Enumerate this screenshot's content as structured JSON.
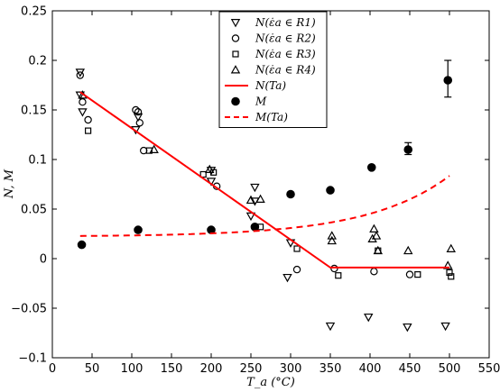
{
  "chart_data": {
    "type": "scatter",
    "xlabel": "T_a (°C)",
    "ylabel": "N, M",
    "xlim": [
      0,
      550
    ],
    "ylim": [
      -0.1,
      0.25
    ],
    "xticks": [
      0,
      50,
      100,
      150,
      200,
      250,
      300,
      350,
      400,
      450,
      500,
      550
    ],
    "yticks": [
      -0.1,
      -0.05,
      0,
      0.05,
      0.1,
      0.15,
      0.2,
      0.25
    ],
    "xtick_labels": [
      "0",
      "50",
      "100",
      "150",
      "200",
      "250",
      "300",
      "350",
      "400",
      "450",
      "500",
      "550"
    ],
    "ytick_labels": [
      "−0.1",
      "−0.05",
      "0",
      "0.05",
      "0.1",
      "0.15",
      "0.2",
      "0.25"
    ],
    "grid": false,
    "legend_position": "top-center",
    "series": [
      {
        "name": "N(ε̇a ∈ R1)",
        "marker": "triangle-down",
        "points": [
          [
            35,
            0.188
          ],
          [
            35,
            0.165
          ],
          [
            38,
            0.148
          ],
          [
            105,
            0.13
          ],
          [
            108,
            0.143
          ],
          [
            200,
            0.089
          ],
          [
            200,
            0.078
          ],
          [
            250,
            0.043
          ],
          [
            255,
            0.058
          ],
          [
            255,
            0.072
          ],
          [
            296,
            -0.019
          ],
          [
            300,
            0.016
          ],
          [
            350,
            -0.068
          ],
          [
            398,
            -0.059
          ],
          [
            447,
            -0.069
          ],
          [
            495,
            -0.068
          ]
        ]
      },
      {
        "name": "N(ε̇a ∈ R2)",
        "marker": "circle",
        "points": [
          [
            35,
            0.185
          ],
          [
            38,
            0.158
          ],
          [
            45,
            0.14
          ],
          [
            105,
            0.15
          ],
          [
            108,
            0.148
          ],
          [
            110,
            0.137
          ],
          [
            115,
            0.109
          ],
          [
            207,
            0.073
          ],
          [
            308,
            -0.011
          ],
          [
            355,
            -0.01
          ],
          [
            405,
            -0.013
          ],
          [
            450,
            -0.016
          ]
        ]
      },
      {
        "name": "N(ε̇a ∈ R3)",
        "marker": "square",
        "points": [
          [
            45,
            0.129
          ],
          [
            122,
            0.109
          ],
          [
            190,
            0.085
          ],
          [
            203,
            0.087
          ],
          [
            262,
            0.032
          ],
          [
            308,
            0.01
          ],
          [
            360,
            -0.017
          ],
          [
            410,
            0.008
          ],
          [
            460,
            -0.016
          ],
          [
            500,
            -0.014
          ],
          [
            502,
            -0.018
          ]
        ]
      },
      {
        "name": "N(ε̇a ∈ R4)",
        "marker": "triangle-up",
        "points": [
          [
            38,
            0.165
          ],
          [
            128,
            0.11
          ],
          [
            198,
            0.09
          ],
          [
            250,
            0.059
          ],
          [
            262,
            0.06
          ],
          [
            352,
            0.018
          ],
          [
            352,
            0.023
          ],
          [
            403,
            0.02
          ],
          [
            405,
            0.03
          ],
          [
            408,
            0.023
          ],
          [
            410,
            0.008
          ],
          [
            448,
            0.008
          ],
          [
            498,
            -0.007
          ],
          [
            502,
            0.01
          ]
        ]
      },
      {
        "name": "N(Ta)",
        "style": "solid-line",
        "color": "#ff0000",
        "points": [
          [
            35,
            0.168
          ],
          [
            350,
            -0.009
          ],
          [
            500,
            -0.009
          ]
        ]
      },
      {
        "name": "M",
        "marker": "filled-circle",
        "points": [
          [
            37,
            0.014
          ],
          [
            108,
            0.029
          ],
          [
            200,
            0.029
          ],
          [
            255,
            0.032
          ],
          [
            300,
            0.065
          ],
          [
            350,
            0.069
          ],
          [
            402,
            0.092
          ],
          [
            448,
            0.11
          ],
          [
            498,
            0.18
          ]
        ],
        "error_bars": [
          {
            "x": 448,
            "y": 0.11,
            "low": 0.105,
            "high": 0.117
          },
          {
            "x": 498,
            "y": 0.18,
            "low": 0.163,
            "high": 0.2
          }
        ]
      },
      {
        "name": "M(Ta)",
        "style": "dashed-line",
        "color": "#ff0000",
        "function": "0.0222 + 0.01416*exp(0.00977*(x-350))",
        "x_range": [
          35,
          500
        ]
      }
    ]
  },
  "legend": {
    "entries": [
      {
        "symbol": "triangle-down",
        "text": "N(ε̇a ∈ R1)"
      },
      {
        "symbol": "circle",
        "text": "N(ε̇a ∈ R2)"
      },
      {
        "symbol": "square",
        "text": "N(ε̇a ∈ R3)"
      },
      {
        "symbol": "triangle-up",
        "text": "N(ε̇a ∈ R4)"
      },
      {
        "symbol": "solid-line",
        "text": "N(Ta)"
      },
      {
        "symbol": "filled-circle",
        "text": "M"
      },
      {
        "symbol": "dashed-line",
        "text": "M(Ta)"
      }
    ]
  }
}
